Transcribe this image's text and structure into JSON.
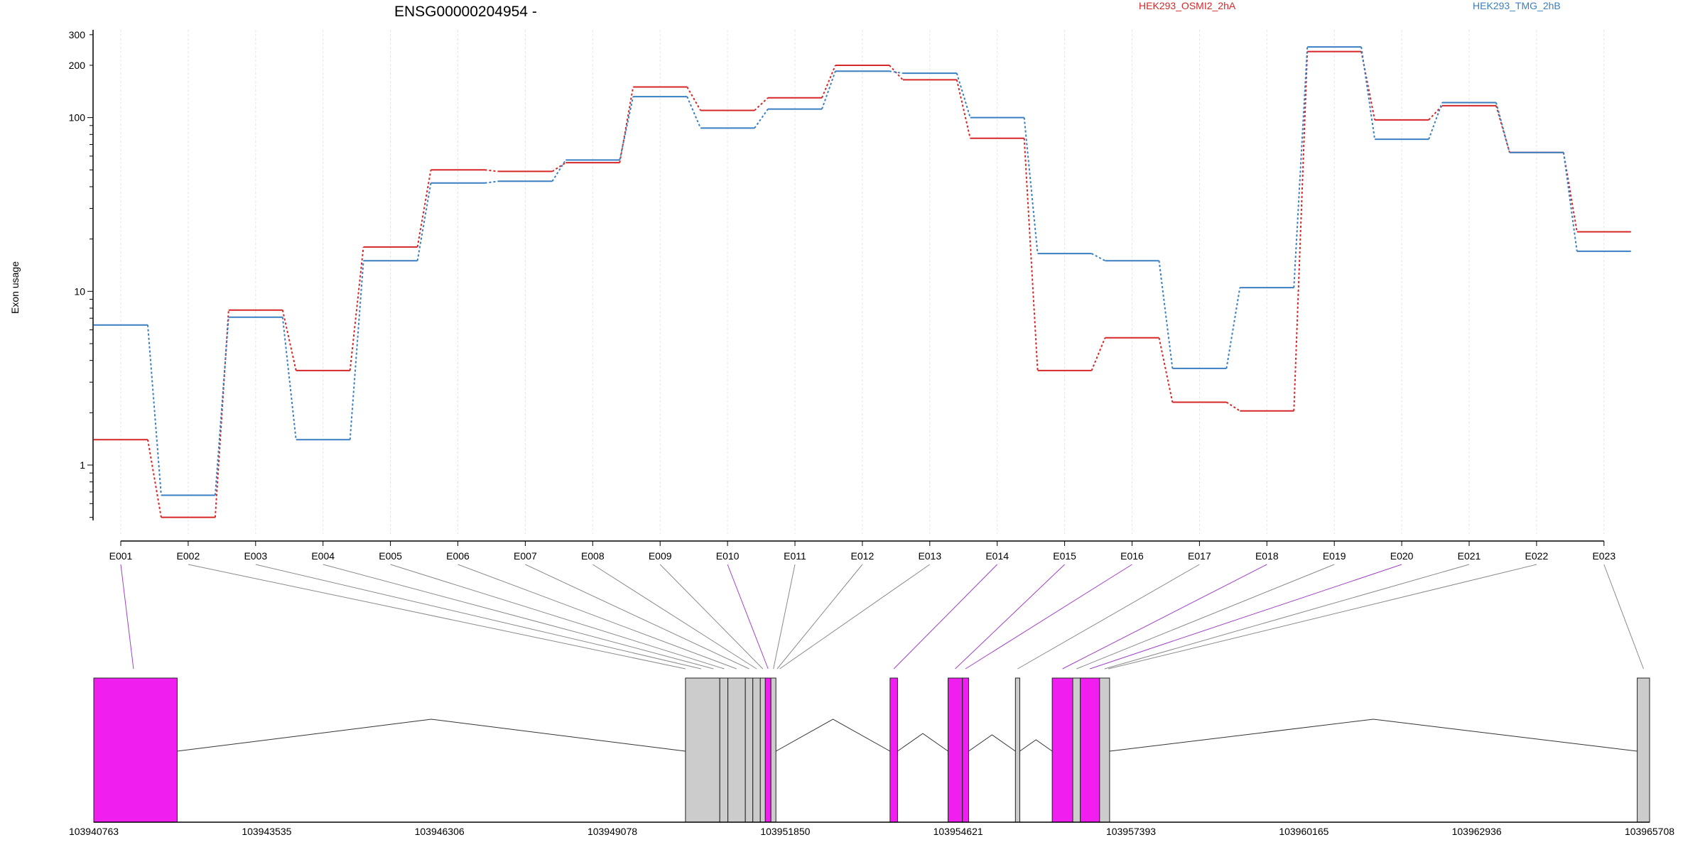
{
  "chart_data": {
    "type": "line",
    "title": "ENSG00000204954 -",
    "ylabel": "Exon usage",
    "yscale": "log",
    "ylim": [
      0.48,
      320
    ],
    "yticks": [
      1,
      10,
      100,
      200,
      300
    ],
    "categories": [
      "E001",
      "E002",
      "E003",
      "E004",
      "E005",
      "E006",
      "E007",
      "E008",
      "E009",
      "E010",
      "E011",
      "E012",
      "E013",
      "E014",
      "E015",
      "E016",
      "E017",
      "E018",
      "E019",
      "E020",
      "E021",
      "E022",
      "E023"
    ],
    "series": [
      {
        "name": "HEK293_OSMI2_2hA",
        "color": "#d62728",
        "values": [
          1.4,
          0.5,
          7.8,
          3.5,
          18,
          50,
          49,
          55,
          150,
          110,
          130,
          200,
          165,
          76,
          3.5,
          5.4,
          2.3,
          2.05,
          240,
          97,
          117,
          63,
          22
        ]
      },
      {
        "name": "HEK293_TMG_2hB",
        "color": "#3a7fc1",
        "values": [
          6.4,
          0.67,
          7.1,
          1.4,
          15,
          42,
          43,
          57,
          132,
          87,
          112,
          185,
          180,
          100,
          16.5,
          15,
          3.6,
          10.5,
          255,
          75,
          122,
          63,
          17
        ]
      }
    ],
    "gene_model": {
      "coordinate_ticks": [
        "103940763",
        "103943535",
        "103946306",
        "103949078",
        "103951850",
        "103954621",
        "103957393",
        "103960165",
        "103962936",
        "103965708"
      ],
      "highlight_color": "#f01ff0",
      "exon_color": "#cccccc",
      "exons": [
        {
          "start": 103940763,
          "end": 103942100,
          "highlight": true
        },
        {
          "start": 103950250,
          "end": 103950800,
          "highlight": false
        },
        {
          "start": 103950800,
          "end": 103950930,
          "highlight": false
        },
        {
          "start": 103950930,
          "end": 103951210,
          "highlight": false
        },
        {
          "start": 103951210,
          "end": 103951330,
          "highlight": false
        },
        {
          "start": 103951330,
          "end": 103951450,
          "highlight": false
        },
        {
          "start": 103951450,
          "end": 103951530,
          "highlight": false
        },
        {
          "start": 103951530,
          "end": 103951620,
          "highlight": true
        },
        {
          "start": 103951620,
          "end": 103951700,
          "highlight": false
        },
        {
          "start": 103953530,
          "end": 103953650,
          "highlight": true
        },
        {
          "start": 103954460,
          "end": 103954690,
          "highlight": true
        },
        {
          "start": 103954690,
          "end": 103954790,
          "highlight": true
        },
        {
          "start": 103955540,
          "end": 103955610,
          "highlight": false
        },
        {
          "start": 103956130,
          "end": 103956460,
          "highlight": true
        },
        {
          "start": 103956460,
          "end": 103956580,
          "highlight": false
        },
        {
          "start": 103956580,
          "end": 103956890,
          "highlight": true
        },
        {
          "start": 103956890,
          "end": 103957050,
          "highlight": false
        },
        {
          "start": 103965510,
          "end": 103965708,
          "highlight": false
        }
      ],
      "exon_links": [
        {
          "exon": "E001",
          "pos": 103941400,
          "highlight": true
        },
        {
          "exon": "E002",
          "pos": 103950250,
          "highlight": false
        },
        {
          "exon": "E003",
          "pos": 103950500,
          "highlight": false
        },
        {
          "exon": "E004",
          "pos": 103950700,
          "highlight": false
        },
        {
          "exon": "E005",
          "pos": 103950870,
          "highlight": false
        },
        {
          "exon": "E006",
          "pos": 103951070,
          "highlight": false
        },
        {
          "exon": "E007",
          "pos": 103951270,
          "highlight": false
        },
        {
          "exon": "E008",
          "pos": 103951390,
          "highlight": false
        },
        {
          "exon": "E009",
          "pos": 103951490,
          "highlight": false
        },
        {
          "exon": "E010",
          "pos": 103951575,
          "highlight": true
        },
        {
          "exon": "E011",
          "pos": 103951660,
          "highlight": false
        },
        {
          "exon": "E012",
          "pos": 103951720,
          "highlight": false
        },
        {
          "exon": "E013",
          "pos": 103951760,
          "highlight": false
        },
        {
          "exon": "E014",
          "pos": 103953590,
          "highlight": true
        },
        {
          "exon": "E015",
          "pos": 103954575,
          "highlight": true
        },
        {
          "exon": "E016",
          "pos": 103954740,
          "highlight": true
        },
        {
          "exon": "E017",
          "pos": 103955575,
          "highlight": false
        },
        {
          "exon": "E018",
          "pos": 103956295,
          "highlight": true
        },
        {
          "exon": "E019",
          "pos": 103956520,
          "highlight": false
        },
        {
          "exon": "E020",
          "pos": 103956735,
          "highlight": true
        },
        {
          "exon": "E021",
          "pos": 103956970,
          "highlight": false
        },
        {
          "exon": "E022",
          "pos": 103957030,
          "highlight": false
        },
        {
          "exon": "E023",
          "pos": 103965610,
          "highlight": false
        }
      ]
    }
  }
}
